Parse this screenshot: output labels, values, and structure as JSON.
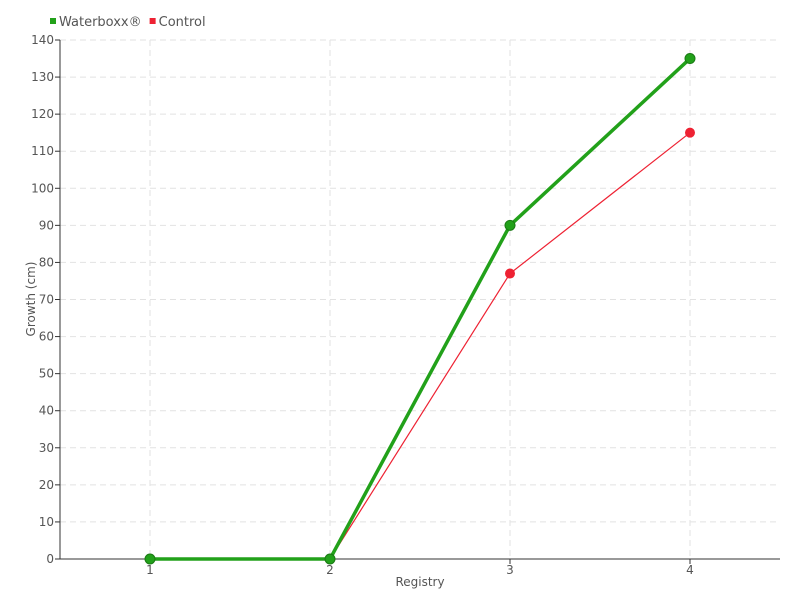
{
  "chart_data": {
    "type": "line",
    "xlabel": "Registry",
    "ylabel": "Growth (cm)",
    "categories": [
      "1",
      "2",
      "3",
      "4"
    ],
    "ylim": [
      0,
      140
    ],
    "yticks": [
      0,
      10,
      20,
      30,
      40,
      50,
      60,
      70,
      80,
      90,
      100,
      110,
      120,
      130,
      140
    ],
    "grid": true,
    "legend_position": "top-left",
    "series": [
      {
        "name": "Waterboxx®",
        "values": [
          0,
          0,
          90,
          135
        ],
        "color": "#22a11a"
      },
      {
        "name": "Control",
        "values": [
          0,
          0,
          77,
          115
        ],
        "color": "#ee2233"
      }
    ]
  }
}
